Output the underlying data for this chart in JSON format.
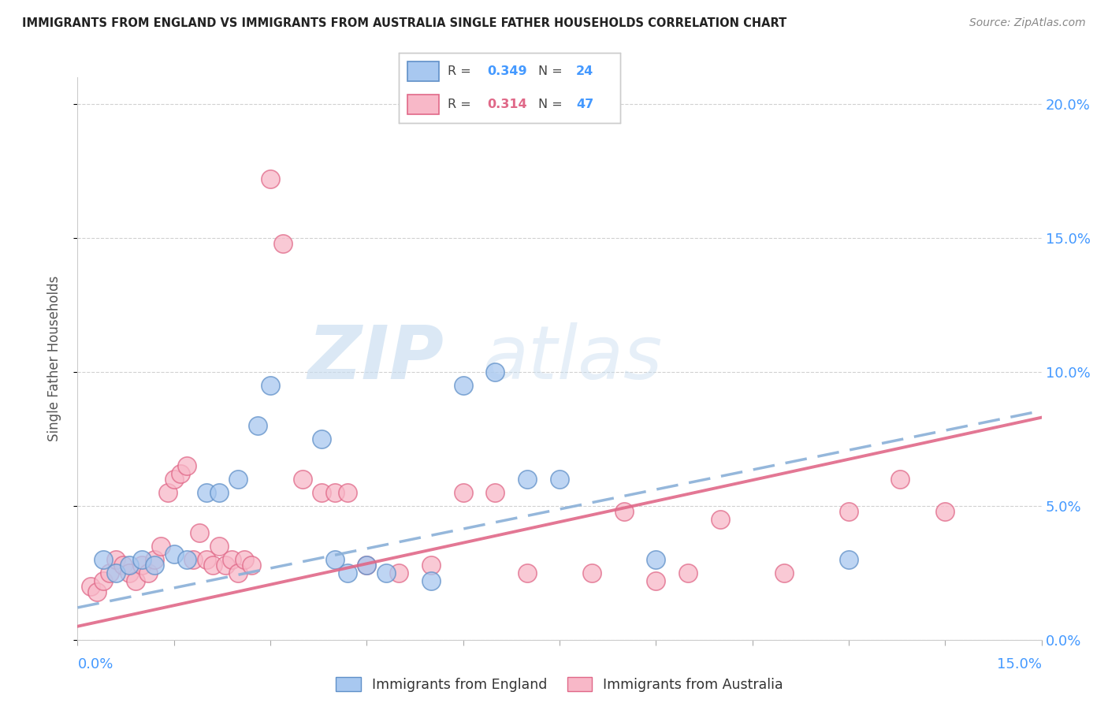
{
  "title": "IMMIGRANTS FROM ENGLAND VS IMMIGRANTS FROM AUSTRALIA SINGLE FATHER HOUSEHOLDS CORRELATION CHART",
  "source": "Source: ZipAtlas.com",
  "ylabel": "Single Father Households",
  "xlim": [
    0.0,
    0.15
  ],
  "ylim": [
    0.0,
    0.21
  ],
  "yticks": [
    0.0,
    0.05,
    0.1,
    0.15,
    0.2
  ],
  "ytick_labels_right": [
    "0.0%",
    "5.0%",
    "10.0%",
    "15.0%",
    "20.0%"
  ],
  "watermark_zip": "ZIP",
  "watermark_atlas": "atlas",
  "england_color": "#a8c8f0",
  "australia_color": "#f8b8c8",
  "england_edge": "#6090c8",
  "australia_edge": "#e06888",
  "eng_line_color": "#4472c4",
  "aus_line_color": "#e06888",
  "eng_line_dash": [
    6,
    3
  ],
  "england_scatter": [
    [
      0.004,
      0.03
    ],
    [
      0.006,
      0.025
    ],
    [
      0.008,
      0.028
    ],
    [
      0.01,
      0.03
    ],
    [
      0.012,
      0.028
    ],
    [
      0.015,
      0.032
    ],
    [
      0.017,
      0.03
    ],
    [
      0.02,
      0.055
    ],
    [
      0.022,
      0.055
    ],
    [
      0.025,
      0.06
    ],
    [
      0.028,
      0.08
    ],
    [
      0.03,
      0.095
    ],
    [
      0.038,
      0.075
    ],
    [
      0.04,
      0.03
    ],
    [
      0.042,
      0.025
    ],
    [
      0.045,
      0.028
    ],
    [
      0.048,
      0.025
    ],
    [
      0.055,
      0.022
    ],
    [
      0.06,
      0.095
    ],
    [
      0.065,
      0.1
    ],
    [
      0.07,
      0.06
    ],
    [
      0.075,
      0.06
    ],
    [
      0.09,
      0.03
    ],
    [
      0.12,
      0.03
    ]
  ],
  "australia_scatter": [
    [
      0.002,
      0.02
    ],
    [
      0.003,
      0.018
    ],
    [
      0.004,
      0.022
    ],
    [
      0.005,
      0.025
    ],
    [
      0.006,
      0.03
    ],
    [
      0.007,
      0.028
    ],
    [
      0.008,
      0.025
    ],
    [
      0.009,
      0.022
    ],
    [
      0.01,
      0.028
    ],
    [
      0.011,
      0.025
    ],
    [
      0.012,
      0.03
    ],
    [
      0.013,
      0.035
    ],
    [
      0.014,
      0.055
    ],
    [
      0.015,
      0.06
    ],
    [
      0.016,
      0.062
    ],
    [
      0.017,
      0.065
    ],
    [
      0.018,
      0.03
    ],
    [
      0.019,
      0.04
    ],
    [
      0.02,
      0.03
    ],
    [
      0.021,
      0.028
    ],
    [
      0.022,
      0.035
    ],
    [
      0.023,
      0.028
    ],
    [
      0.024,
      0.03
    ],
    [
      0.025,
      0.025
    ],
    [
      0.026,
      0.03
    ],
    [
      0.027,
      0.028
    ],
    [
      0.03,
      0.172
    ],
    [
      0.032,
      0.148
    ],
    [
      0.035,
      0.06
    ],
    [
      0.038,
      0.055
    ],
    [
      0.04,
      0.055
    ],
    [
      0.042,
      0.055
    ],
    [
      0.045,
      0.028
    ],
    [
      0.05,
      0.025
    ],
    [
      0.055,
      0.028
    ],
    [
      0.06,
      0.055
    ],
    [
      0.065,
      0.055
    ],
    [
      0.07,
      0.025
    ],
    [
      0.08,
      0.025
    ],
    [
      0.085,
      0.048
    ],
    [
      0.09,
      0.022
    ],
    [
      0.095,
      0.025
    ],
    [
      0.1,
      0.045
    ],
    [
      0.11,
      0.025
    ],
    [
      0.12,
      0.048
    ],
    [
      0.128,
      0.06
    ],
    [
      0.135,
      0.048
    ]
  ],
  "eng_line_slope": 0.49,
  "eng_line_intercept": 0.012,
  "aus_line_slope": 0.52,
  "aus_line_intercept": 0.005
}
